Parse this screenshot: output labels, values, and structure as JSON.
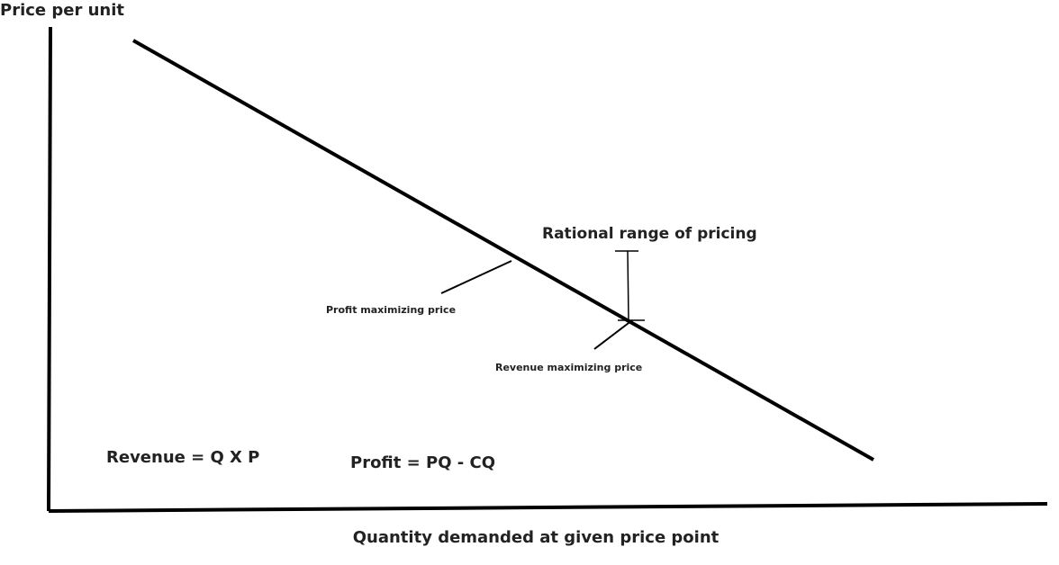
{
  "axes": {
    "y_label": "Price per unit",
    "x_label": "Quantity demanded at given price point"
  },
  "annotations": {
    "rational_range": "Rational range of pricing",
    "profit_max": "Profit maximizing price",
    "revenue_max": "Revenue maximizing price"
  },
  "formulas": {
    "revenue": "Revenue = Q X P",
    "profit": "Profit = PQ - CQ"
  }
}
